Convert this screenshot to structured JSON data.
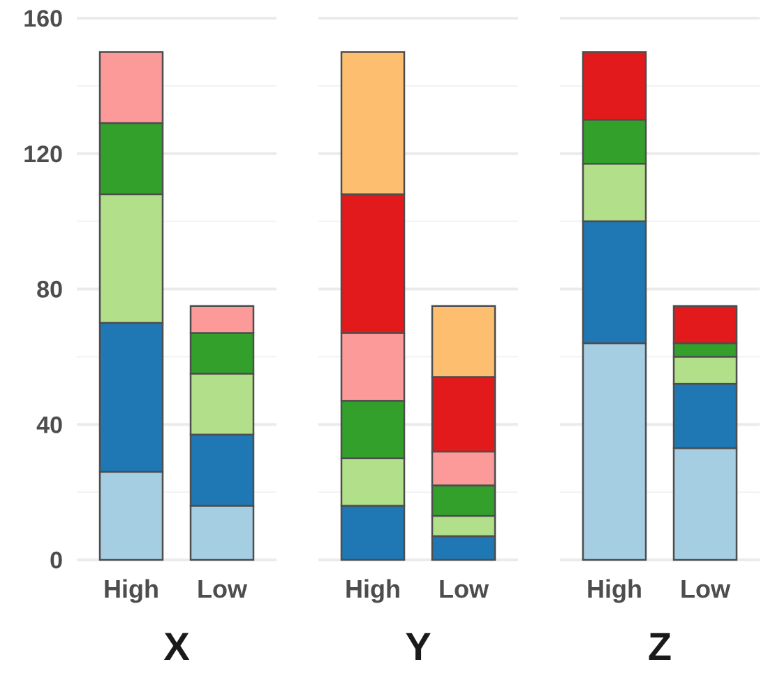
{
  "chart_data": {
    "type": "bar",
    "stacked": true,
    "faceted": true,
    "ylim": [
      0,
      160
    ],
    "yticks": [
      0,
      40,
      80,
      120,
      160
    ],
    "grid": true,
    "colors": {
      "light_blue": "#a6cee3",
      "dark_blue": "#1f78b4",
      "light_green": "#b2df8a",
      "dark_green": "#33a02c",
      "pink": "#fb9a99",
      "red": "#e31a1c",
      "orange": "#fdbf6f"
    },
    "panels": [
      {
        "label": "X",
        "bars": [
          {
            "category": "High",
            "segments": [
              {
                "color_key": "light_blue",
                "value": 26
              },
              {
                "color_key": "dark_blue",
                "value": 44
              },
              {
                "color_key": "light_green",
                "value": 38
              },
              {
                "color_key": "dark_green",
                "value": 21
              },
              {
                "color_key": "pink",
                "value": 21
              }
            ]
          },
          {
            "category": "Low",
            "segments": [
              {
                "color_key": "light_blue",
                "value": 16
              },
              {
                "color_key": "dark_blue",
                "value": 21
              },
              {
                "color_key": "light_green",
                "value": 18
              },
              {
                "color_key": "dark_green",
                "value": 12
              },
              {
                "color_key": "pink",
                "value": 8
              }
            ]
          }
        ]
      },
      {
        "label": "Y",
        "bars": [
          {
            "category": "High",
            "segments": [
              {
                "color_key": "dark_blue",
                "value": 16
              },
              {
                "color_key": "light_green",
                "value": 14
              },
              {
                "color_key": "dark_green",
                "value": 17
              },
              {
                "color_key": "pink",
                "value": 20
              },
              {
                "color_key": "red",
                "value": 41
              },
              {
                "color_key": "orange",
                "value": 42
              }
            ]
          },
          {
            "category": "Low",
            "segments": [
              {
                "color_key": "dark_blue",
                "value": 7
              },
              {
                "color_key": "light_green",
                "value": 6
              },
              {
                "color_key": "dark_green",
                "value": 9
              },
              {
                "color_key": "pink",
                "value": 10
              },
              {
                "color_key": "red",
                "value": 22
              },
              {
                "color_key": "orange",
                "value": 21
              }
            ]
          }
        ]
      },
      {
        "label": "Z",
        "bars": [
          {
            "category": "High",
            "segments": [
              {
                "color_key": "light_blue",
                "value": 64
              },
              {
                "color_key": "dark_blue",
                "value": 36
              },
              {
                "color_key": "light_green",
                "value": 17
              },
              {
                "color_key": "dark_green",
                "value": 13
              },
              {
                "color_key": "red",
                "value": 20
              }
            ]
          },
          {
            "category": "Low",
            "segments": [
              {
                "color_key": "light_blue",
                "value": 33
              },
              {
                "color_key": "dark_blue",
                "value": 19
              },
              {
                "color_key": "light_green",
                "value": 8
              },
              {
                "color_key": "dark_green",
                "value": 4
              },
              {
                "color_key": "red",
                "value": 11
              }
            ]
          }
        ]
      }
    ]
  }
}
